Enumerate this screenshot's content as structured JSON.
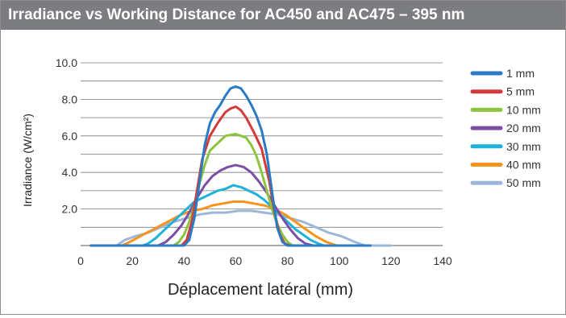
{
  "title": "Irradiance vs Working Distance for AC450 and AC475 – 395 nm",
  "chart_data": {
    "type": "line",
    "title": "Irradiance vs Working Distance for AC450 and AC475 – 395 nm",
    "xlabel": "Déplacement latéral (mm)",
    "ylabel": "Irradiance (W/cm²)",
    "xlim": [
      0,
      140
    ],
    "ylim": [
      0,
      10
    ],
    "x_ticks": [
      "0",
      "20",
      "40",
      "60",
      "80",
      "100",
      "120",
      "140"
    ],
    "y_ticks": [
      "2.0",
      "4.0",
      "6.0",
      "8.0",
      "10.0"
    ],
    "grid": "horizontal",
    "legend_position": "right",
    "series": [
      {
        "name": "1 mm",
        "color": "#2b7bc4",
        "points": [
          [
            4,
            0
          ],
          [
            40,
            0
          ],
          [
            42,
            0.3
          ],
          [
            44,
            1.5
          ],
          [
            46,
            3.5
          ],
          [
            48,
            5.5
          ],
          [
            50,
            6.7
          ],
          [
            52,
            7.3
          ],
          [
            54,
            7.7
          ],
          [
            56,
            8.2
          ],
          [
            58,
            8.6
          ],
          [
            60,
            8.7
          ],
          [
            62,
            8.6
          ],
          [
            64,
            8.2
          ],
          [
            66,
            7.7
          ],
          [
            68,
            7.1
          ],
          [
            70,
            6.3
          ],
          [
            72,
            5
          ],
          [
            74,
            3
          ],
          [
            76,
            1
          ],
          [
            78,
            0.2
          ],
          [
            80,
            0
          ],
          [
            112,
            0
          ]
        ]
      },
      {
        "name": "5 mm",
        "color": "#d43a3a",
        "points": [
          [
            4,
            0
          ],
          [
            39,
            0
          ],
          [
            41,
            0.3
          ],
          [
            43,
            1.3
          ],
          [
            45,
            3
          ],
          [
            47,
            4.7
          ],
          [
            50,
            6
          ],
          [
            53,
            6.7
          ],
          [
            56,
            7.3
          ],
          [
            58,
            7.5
          ],
          [
            60,
            7.6
          ],
          [
            62,
            7.4
          ],
          [
            64,
            7
          ],
          [
            67,
            6.2
          ],
          [
            70,
            5.3
          ],
          [
            73,
            3.5
          ],
          [
            75,
            1.8
          ],
          [
            77,
            0.6
          ],
          [
            79,
            0.1
          ],
          [
            81,
            0
          ],
          [
            112,
            0
          ]
        ]
      },
      {
        "name": "10 mm",
        "color": "#8cc63f",
        "points": [
          [
            4,
            0
          ],
          [
            36,
            0
          ],
          [
            38,
            0.2
          ],
          [
            40,
            0.6
          ],
          [
            42,
            1.3
          ],
          [
            44,
            2.2
          ],
          [
            46,
            3.4
          ],
          [
            48,
            4.4
          ],
          [
            50,
            5.2
          ],
          [
            53,
            5.6
          ],
          [
            56,
            6
          ],
          [
            60,
            6.1
          ],
          [
            64,
            5.9
          ],
          [
            66,
            5.5
          ],
          [
            68,
            4.9
          ],
          [
            70,
            4
          ],
          [
            72,
            3
          ],
          [
            74,
            2
          ],
          [
            76,
            1.2
          ],
          [
            78,
            0.6
          ],
          [
            80,
            0.2
          ],
          [
            82,
            0
          ],
          [
            112,
            0
          ]
        ]
      },
      {
        "name": "20 mm",
        "color": "#7b4fa3",
        "points": [
          [
            4,
            0
          ],
          [
            30,
            0
          ],
          [
            33,
            0.2
          ],
          [
            36,
            0.6
          ],
          [
            39,
            1.1
          ],
          [
            42,
            1.8
          ],
          [
            45,
            2.6
          ],
          [
            48,
            3.3
          ],
          [
            51,
            3.8
          ],
          [
            54,
            4.1
          ],
          [
            57,
            4.3
          ],
          [
            60,
            4.4
          ],
          [
            63,
            4.3
          ],
          [
            66,
            4
          ],
          [
            69,
            3.5
          ],
          [
            72,
            2.9
          ],
          [
            75,
            2.2
          ],
          [
            78,
            1.5
          ],
          [
            81,
            0.9
          ],
          [
            84,
            0.4
          ],
          [
            87,
            0.1
          ],
          [
            90,
            0
          ],
          [
            112,
            0
          ]
        ]
      },
      {
        "name": "30 mm",
        "color": "#1fb1d6",
        "points": [
          [
            4,
            0
          ],
          [
            24,
            0
          ],
          [
            26,
            0.1
          ],
          [
            29,
            0.4
          ],
          [
            32,
            0.8
          ],
          [
            35,
            1.2
          ],
          [
            38,
            1.6
          ],
          [
            41,
            2
          ],
          [
            44,
            2.4
          ],
          [
            47,
            2.6
          ],
          [
            50,
            2.8
          ],
          [
            53,
            3
          ],
          [
            56,
            3.1
          ],
          [
            59,
            3.3
          ],
          [
            62,
            3.2
          ],
          [
            65,
            3
          ],
          [
            68,
            2.8
          ],
          [
            71,
            2.5
          ],
          [
            74,
            2.1
          ],
          [
            77,
            1.7
          ],
          [
            80,
            1.3
          ],
          [
            83,
            0.9
          ],
          [
            86,
            0.6
          ],
          [
            89,
            0.3
          ],
          [
            92,
            0.1
          ],
          [
            94,
            0
          ],
          [
            112,
            0
          ]
        ]
      },
      {
        "name": "40 mm",
        "color": "#f7941d",
        "points": [
          [
            4,
            0
          ],
          [
            16,
            0
          ],
          [
            19,
            0.2
          ],
          [
            23,
            0.5
          ],
          [
            27,
            0.8
          ],
          [
            31,
            1.1
          ],
          [
            35,
            1.4
          ],
          [
            39,
            1.7
          ],
          [
            43,
            1.9
          ],
          [
            47,
            2
          ],
          [
            51,
            2.2
          ],
          [
            55,
            2.3
          ],
          [
            59,
            2.4
          ],
          [
            63,
            2.4
          ],
          [
            67,
            2.3
          ],
          [
            71,
            2.2
          ],
          [
            75,
            2
          ],
          [
            79,
            1.7
          ],
          [
            83,
            1.3
          ],
          [
            87,
            0.9
          ],
          [
            91,
            0.5
          ],
          [
            95,
            0.2
          ],
          [
            99,
            0
          ],
          [
            112,
            0
          ]
        ]
      },
      {
        "name": "50 mm",
        "color": "#9cb7da",
        "points": [
          [
            4,
            0
          ],
          [
            14,
            0
          ],
          [
            17,
            0.3
          ],
          [
            21,
            0.5
          ],
          [
            26,
            0.7
          ],
          [
            31,
            1
          ],
          [
            36,
            1.3
          ],
          [
            41,
            1.5
          ],
          [
            46,
            1.7
          ],
          [
            51,
            1.8
          ],
          [
            56,
            1.8
          ],
          [
            61,
            1.9
          ],
          [
            66,
            1.9
          ],
          [
            71,
            1.8
          ],
          [
            76,
            1.7
          ],
          [
            81,
            1.5
          ],
          [
            86,
            1.3
          ],
          [
            91,
            1
          ],
          [
            96,
            0.7
          ],
          [
            101,
            0.5
          ],
          [
            106,
            0.2
          ],
          [
            110,
            0
          ],
          [
            120,
            0
          ]
        ]
      }
    ]
  }
}
